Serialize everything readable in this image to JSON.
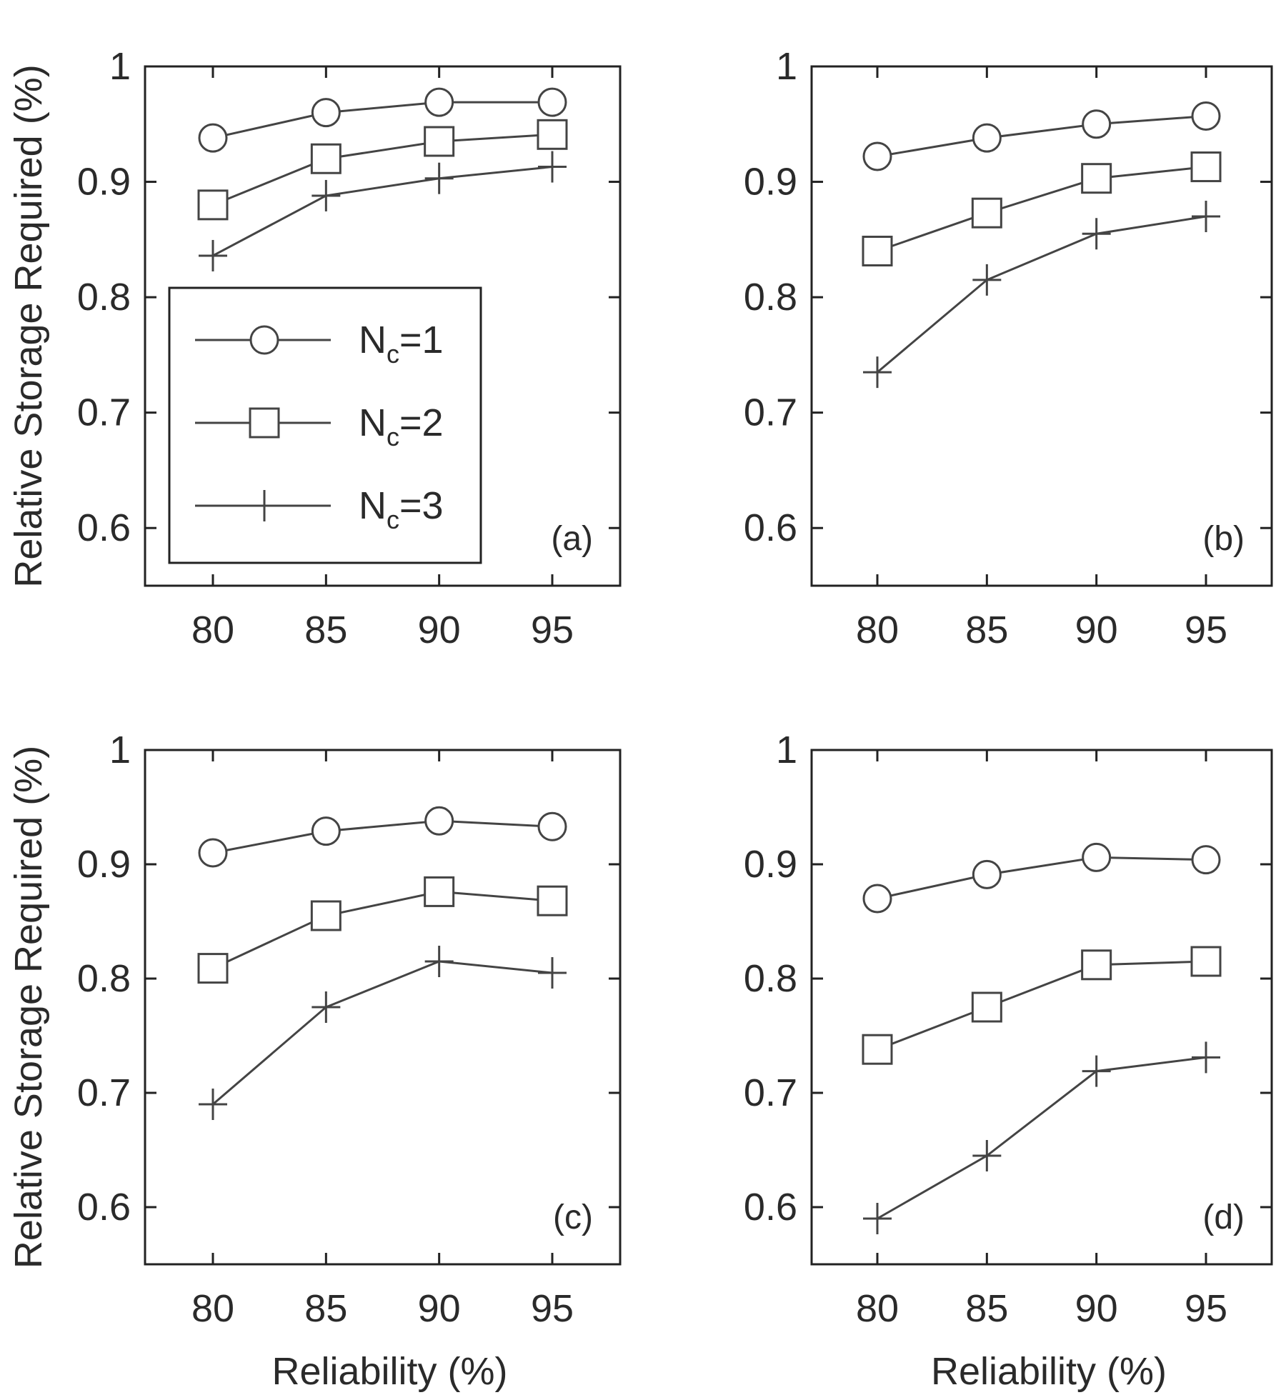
{
  "chart_data": [
    {
      "type": "line",
      "panel_label": "(a)",
      "xlabel": "",
      "ylabel": "Relative Storage Required (%)",
      "x": [
        80,
        85,
        90,
        95
      ],
      "xticks": [
        "80",
        "85",
        "90",
        "95"
      ],
      "yticks": [
        "0.6",
        "0.7",
        "0.8",
        "0.9",
        "1"
      ],
      "xlim": [
        77,
        98
      ],
      "ylim": [
        0.55,
        1.0
      ],
      "legend": {
        "location": "lower-left",
        "entries": [
          "N_c=1",
          "N_c=2",
          "N_c=3"
        ]
      },
      "series": [
        {
          "name": "N_c=1",
          "marker": "circle",
          "values": [
            0.938,
            0.96,
            0.969,
            0.969
          ]
        },
        {
          "name": "N_c=2",
          "marker": "square",
          "values": [
            0.88,
            0.92,
            0.935,
            0.941
          ]
        },
        {
          "name": "N_c=3",
          "marker": "plus",
          "values": [
            0.836,
            0.888,
            0.903,
            0.913
          ]
        }
      ]
    },
    {
      "type": "line",
      "panel_label": "(b)",
      "xlabel": "",
      "ylabel": "",
      "x": [
        80,
        85,
        90,
        95
      ],
      "xticks": [
        "80",
        "85",
        "90",
        "95"
      ],
      "yticks": [
        "0.6",
        "0.7",
        "0.8",
        "0.9",
        "1"
      ],
      "xlim": [
        77,
        98
      ],
      "ylim": [
        0.55,
        1.0
      ],
      "series": [
        {
          "name": "N_c=1",
          "marker": "circle",
          "values": [
            0.922,
            0.938,
            0.95,
            0.957
          ]
        },
        {
          "name": "N_c=2",
          "marker": "square",
          "values": [
            0.84,
            0.873,
            0.903,
            0.913
          ]
        },
        {
          "name": "N_c=3",
          "marker": "plus",
          "values": [
            0.735,
            0.815,
            0.855,
            0.87
          ]
        }
      ]
    },
    {
      "type": "line",
      "panel_label": "(c)",
      "xlabel": "Reliability (%)",
      "ylabel": "Relative Storage Required (%)",
      "x": [
        80,
        85,
        90,
        95
      ],
      "xticks": [
        "80",
        "85",
        "90",
        "95"
      ],
      "yticks": [
        "0.6",
        "0.7",
        "0.8",
        "0.9",
        "1"
      ],
      "xlim": [
        77,
        98
      ],
      "ylim": [
        0.55,
        1.0
      ],
      "series": [
        {
          "name": "N_c=1",
          "marker": "circle",
          "values": [
            0.91,
            0.929,
            0.938,
            0.933
          ]
        },
        {
          "name": "N_c=2",
          "marker": "square",
          "values": [
            0.809,
            0.855,
            0.876,
            0.868
          ]
        },
        {
          "name": "N_c=3",
          "marker": "plus",
          "values": [
            0.69,
            0.775,
            0.815,
            0.805
          ]
        }
      ]
    },
    {
      "type": "line",
      "panel_label": "(d)",
      "xlabel": "Reliability (%)",
      "ylabel": "",
      "x": [
        80,
        85,
        90,
        95
      ],
      "xticks": [
        "80",
        "85",
        "90",
        "95"
      ],
      "yticks": [
        "0.6",
        "0.7",
        "0.8",
        "0.9",
        "1"
      ],
      "xlim": [
        77,
        98
      ],
      "ylim": [
        0.55,
        1.0
      ],
      "series": [
        {
          "name": "N_c=1",
          "marker": "circle",
          "values": [
            0.87,
            0.891,
            0.906,
            0.904
          ]
        },
        {
          "name": "N_c=2",
          "marker": "square",
          "values": [
            0.738,
            0.775,
            0.812,
            0.815
          ]
        },
        {
          "name": "N_c=3",
          "marker": "plus",
          "values": [
            0.59,
            0.645,
            0.719,
            0.731
          ]
        }
      ]
    }
  ]
}
